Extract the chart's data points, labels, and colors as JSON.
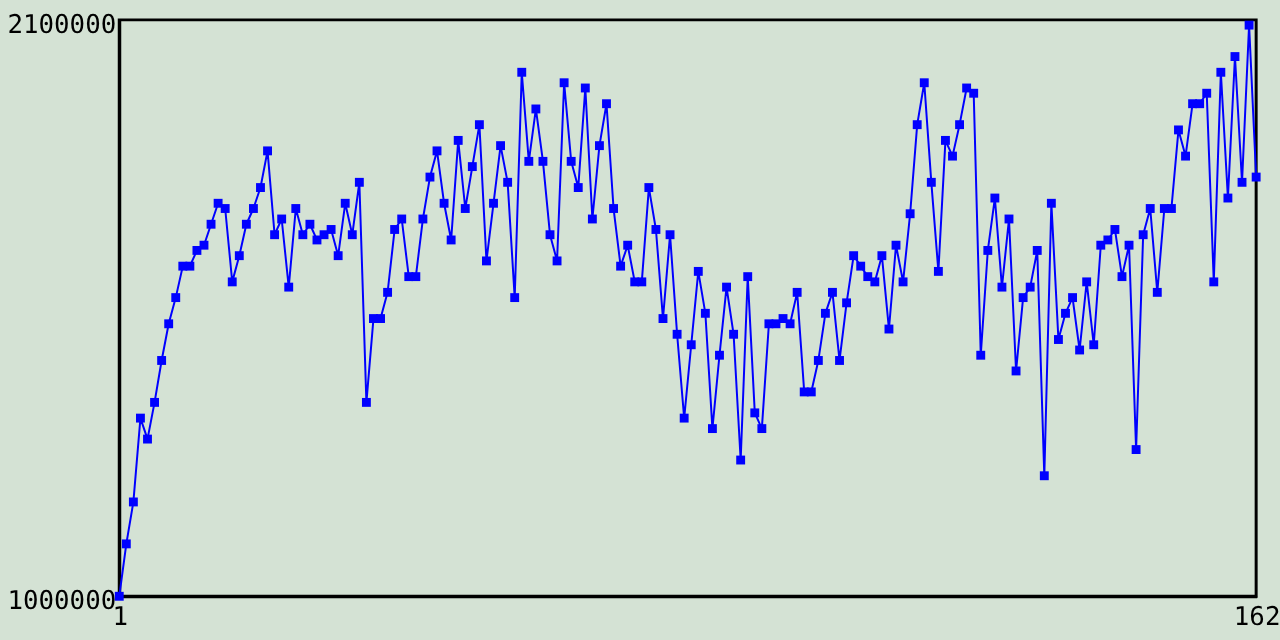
{
  "chart_data": {
    "type": "line",
    "x": [
      1,
      2,
      3,
      4,
      5,
      6,
      7,
      8,
      9,
      10,
      11,
      12,
      13,
      14,
      15,
      16,
      17,
      18,
      19,
      20,
      21,
      22,
      23,
      24,
      25,
      26,
      27,
      28,
      29,
      30,
      31,
      32,
      33,
      34,
      35,
      36,
      37,
      38,
      39,
      40,
      41,
      42,
      43,
      44,
      45,
      46,
      47,
      48,
      49,
      50,
      51,
      52,
      53,
      54,
      55,
      56,
      57,
      58,
      59,
      60,
      61,
      62,
      63,
      64,
      65,
      66,
      67,
      68,
      69,
      70,
      71,
      72,
      73,
      74,
      75,
      76,
      77,
      78,
      79,
      80,
      81,
      82,
      83,
      84,
      85,
      86,
      87,
      88,
      89,
      90,
      91,
      92,
      93,
      94,
      95,
      96,
      97,
      98,
      99,
      100,
      101,
      102,
      103,
      104,
      105,
      106,
      107,
      108,
      109,
      110,
      111,
      112,
      113,
      114,
      115,
      116,
      117,
      118,
      119,
      120,
      121,
      122,
      123,
      124,
      125,
      126,
      127,
      128,
      129,
      130,
      131,
      132,
      133,
      134,
      135,
      136,
      137,
      138,
      139,
      140,
      141,
      142,
      143,
      144,
      145,
      146,
      147,
      148,
      149,
      150,
      151,
      152,
      153,
      154,
      155,
      156,
      157,
      158,
      159,
      160,
      161,
      162
    ],
    "series": [
      {
        "color": "#0000ff",
        "values": [
          1000000,
          1100000,
          1180000,
          1340000,
          1300000,
          1370000,
          1450000,
          1520000,
          1570000,
          1630000,
          1630000,
          1660000,
          1670000,
          1710000,
          1750000,
          1740000,
          1600000,
          1650000,
          1710000,
          1740000,
          1780000,
          1850000,
          1690000,
          1720000,
          1590000,
          1740000,
          1690000,
          1710000,
          1680000,
          1690000,
          1700000,
          1650000,
          1750000,
          1690000,
          1790000,
          1370000,
          1530000,
          1530000,
          1580000,
          1700000,
          1720000,
          1610000,
          1610000,
          1720000,
          1800000,
          1850000,
          1750000,
          1680000,
          1870000,
          1740000,
          1820000,
          1900000,
          1640000,
          1750000,
          1860000,
          1790000,
          1570000,
          2000000,
          1830000,
          1930000,
          1830000,
          1690000,
          1640000,
          1980000,
          1830000,
          1780000,
          1970000,
          1720000,
          1860000,
          1940000,
          1740000,
          1630000,
          1670000,
          1600000,
          1600000,
          1780000,
          1700000,
          1530000,
          1690000,
          1500000,
          1340000,
          1480000,
          1620000,
          1540000,
          1320000,
          1460000,
          1590000,
          1500000,
          1260000,
          1610000,
          1350000,
          1320000,
          1520000,
          1520000,
          1530000,
          1520000,
          1580000,
          1390000,
          1390000,
          1450000,
          1540000,
          1580000,
          1450000,
          1560000,
          1650000,
          1630000,
          1610000,
          1600000,
          1650000,
          1510000,
          1670000,
          1600000,
          1730000,
          1900000,
          1980000,
          1790000,
          1620000,
          1870000,
          1840000,
          1900000,
          1970000,
          1960000,
          1460000,
          1660000,
          1760000,
          1590000,
          1720000,
          1430000,
          1570000,
          1590000,
          1660000,
          1230000,
          1750000,
          1490000,
          1540000,
          1570000,
          1470000,
          1600000,
          1480000,
          1670000,
          1680000,
          1700000,
          1610000,
          1670000,
          1280000,
          1690000,
          1740000,
          1580000,
          1740000,
          1740000,
          1890000,
          1840000,
          1940000,
          1940000,
          1960000,
          1600000,
          2000000,
          1760000,
          2030000,
          1790000,
          2090000,
          1800000
        ]
      }
    ],
    "xlim": [
      1,
      162
    ],
    "xticks": [
      1,
      162
    ],
    "ylim": [
      1000000,
      2100000
    ],
    "yticks": [
      1000000,
      2100000
    ],
    "grid": false,
    "marker": "square",
    "line_style": "solid"
  }
}
